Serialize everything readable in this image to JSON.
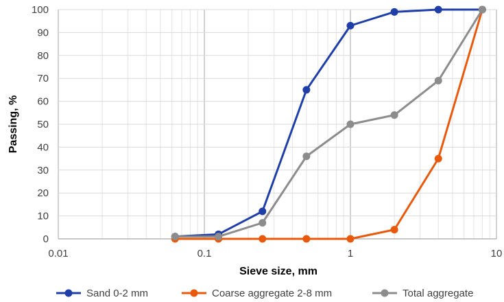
{
  "chart_data": {
    "type": "line",
    "x_scale": "log",
    "xlim": [
      0.01,
      10
    ],
    "ylim": [
      0,
      100
    ],
    "xlabel": "Sieve size, mm",
    "ylabel": "Passing, %",
    "x_ticks": [
      {
        "value": 0.01,
        "label": "0.01"
      },
      {
        "value": 0.1,
        "label": "0.1"
      },
      {
        "value": 1,
        "label": "1"
      },
      {
        "value": 10,
        "label": "10"
      }
    ],
    "y_ticks": [
      {
        "value": 0,
        "label": "0"
      },
      {
        "value": 10,
        "label": "10"
      },
      {
        "value": 20,
        "label": "20"
      },
      {
        "value": 30,
        "label": "30"
      },
      {
        "value": 40,
        "label": "40"
      },
      {
        "value": 50,
        "label": "50"
      },
      {
        "value": 60,
        "label": "60"
      },
      {
        "value": 70,
        "label": "70"
      },
      {
        "value": 80,
        "label": "80"
      },
      {
        "value": 90,
        "label": "90"
      },
      {
        "value": 100,
        "label": "100"
      }
    ],
    "grid": true,
    "legend_position": "bottom",
    "series": [
      {
        "name": "Sand 0-2 mm",
        "color": "#1f3ea8",
        "x": [
          0.063,
          0.125,
          0.25,
          0.5,
          1,
          2,
          4,
          8
        ],
        "y": [
          1,
          2,
          12,
          65,
          93,
          99,
          100,
          100
        ]
      },
      {
        "name": "Coarse aggregate 2-8 mm",
        "color": "#e8590c",
        "x": [
          0.063,
          0.125,
          0.25,
          0.5,
          1,
          2,
          4,
          8
        ],
        "y": [
          0,
          0,
          0,
          0,
          0,
          4,
          35,
          100
        ]
      },
      {
        "name": "Total aggregate",
        "color": "#8c8c8c",
        "x": [
          0.063,
          0.125,
          0.25,
          0.5,
          1,
          2,
          4,
          8
        ],
        "y": [
          1,
          1,
          7,
          36,
          50,
          54,
          69,
          100
        ]
      }
    ]
  }
}
